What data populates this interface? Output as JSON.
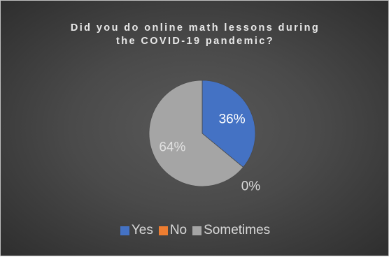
{
  "chart_data": {
    "type": "pie",
    "title_lines": [
      "Did you do online math lessons during",
      "the COVID-19 pandemic?"
    ],
    "slices": [
      {
        "label": "Yes",
        "value": 36,
        "data_label": "36%",
        "color": "#4472c4"
      },
      {
        "label": "No",
        "value": 0,
        "data_label": "0%",
        "color": "#ed7d31"
      },
      {
        "label": "Sometimes",
        "value": 64,
        "data_label": "64%",
        "color": "#a5a5a5"
      }
    ],
    "legend_position": "bottom",
    "start_angle_deg": 0,
    "direction": "clockwise"
  }
}
